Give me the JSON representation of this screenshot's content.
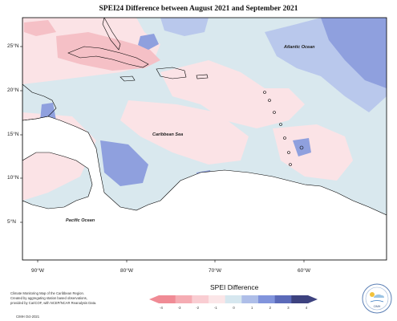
{
  "title": "SPEI24 Difference between August 2021 and September 2021",
  "map_labels": {
    "atlantic": "Atlantic Ocean",
    "caribbean": "Caribbean Sea",
    "pacific": "Pacific Ocean"
  },
  "latitude_ticks": [
    "25°N",
    "20°N",
    "15°N",
    "10°N",
    "5°N"
  ],
  "longitude_ticks": [
    "90°W",
    "80°W",
    "70°W",
    "60°W"
  ],
  "credit_lines": [
    "Climate Monitoring Map of the Caribbean Region.",
    "Created by aggregating station based observations,",
    "provided by CariCOF, with NCEP/NCAR Reanalysis Data."
  ],
  "credit_date": "CIMH Oct-2021",
  "legend": {
    "title": "SPEI Difference",
    "ticks": [
      "-4",
      "-3",
      "-2",
      "-1",
      "0",
      "1",
      "2",
      "3",
      "4"
    ],
    "colors": [
      "#f08b95",
      "#f5acb3",
      "#f9cdd2",
      "#fbe6e8",
      "#d6e7ef",
      "#aebee8",
      "#8194dc",
      "#5b6ab9",
      "#3d427f"
    ]
  },
  "logo_text": "CIMH",
  "colors": {
    "land": "#ffffff",
    "coast": "#000000",
    "ocean_neutral": "#d9e8ee",
    "dry_light": "#fbe3e6",
    "dry": "#f5c0c6",
    "wet_light": "#b9c8ec",
    "wet": "#8fa0de"
  }
}
